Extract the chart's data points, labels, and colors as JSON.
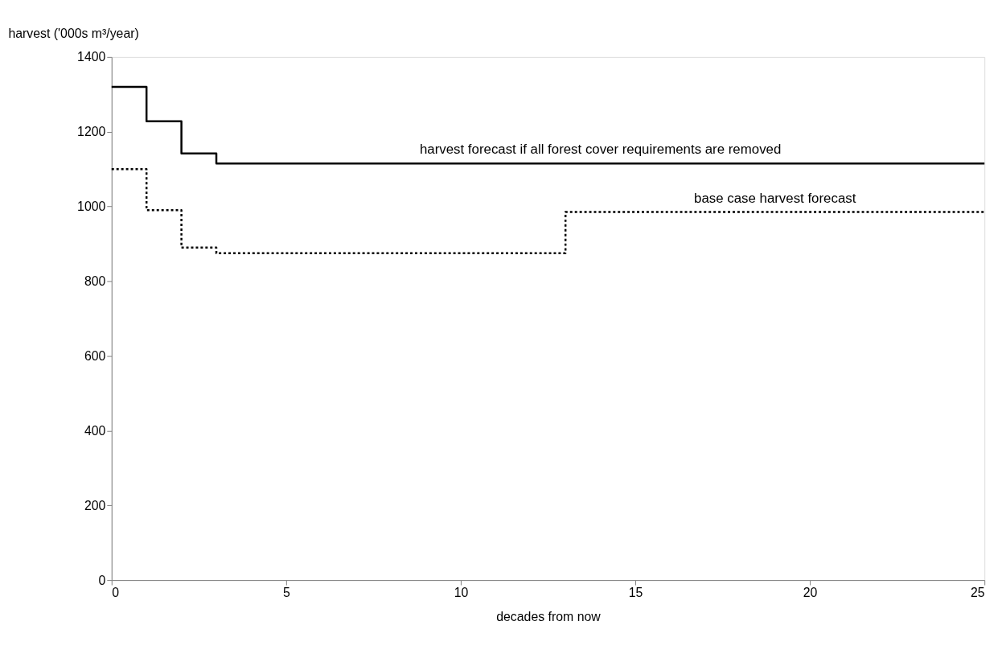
{
  "chart_data": {
    "type": "step",
    "xlabel": "decades from now",
    "ylabel": "harvest ('000s m³/year)",
    "xlim": [
      0,
      25
    ],
    "xticks": [
      0,
      5,
      10,
      15,
      20,
      25
    ],
    "ylim": [
      0,
      1400
    ],
    "yticks": [
      0,
      200,
      400,
      600,
      800,
      1000,
      1200,
      1400
    ],
    "grid": false,
    "series": [
      {
        "name": "harvest forecast if all forest cover requirements are removed",
        "color": "#000000",
        "line_style": "solid",
        "x": [
          0,
          1,
          2,
          3,
          25
        ],
        "values": [
          1320,
          1228,
          1142,
          1115,
          1115
        ]
      },
      {
        "name": "base case harvest forecast",
        "color": "#000000",
        "line_style": "dotted",
        "x": [
          0,
          1,
          2,
          3,
          13,
          25
        ],
        "values": [
          1100,
          990,
          890,
          875,
          985,
          985
        ]
      }
    ]
  }
}
